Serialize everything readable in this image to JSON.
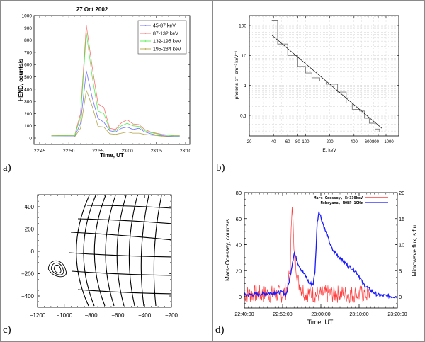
{
  "panels": {
    "a": {
      "label": "a)"
    },
    "b": {
      "label": "b)"
    },
    "c": {
      "label": "c)"
    },
    "d": {
      "label": "d)"
    }
  },
  "chart_data": [
    {
      "id": "a",
      "type": "line",
      "title": "27 Oct 2002",
      "xlabel": "Time, UT",
      "ylabel": "HEND, counts/s",
      "xlim": [
        22.7333,
        23.1833
      ],
      "ylim": [
        -40,
        1000
      ],
      "xticks": [
        "22:45",
        "22:50",
        "22:55",
        "23:00",
        "23:05",
        "23:10"
      ],
      "yticks": [
        0,
        100,
        200,
        300,
        400,
        500,
        600,
        700,
        800,
        900,
        1000
      ],
      "legend": "top-right",
      "x": [
        "22:47",
        "22:51",
        "22:52",
        "22:53",
        "22:54",
        "22:55",
        "22:56",
        "22:57",
        "22:58",
        "22:59",
        "23:00",
        "23:01",
        "23:02",
        "23:03",
        "23:04",
        "23:05",
        "23:06",
        "23:07",
        "23:08",
        "23:09"
      ],
      "series": [
        {
          "name": "45-87 keV",
          "color": "#6f6fff",
          "values": [
            10,
            12,
            120,
            550,
            330,
            160,
            130,
            60,
            50,
            80,
            90,
            70,
            80,
            50,
            35,
            25,
            20,
            15,
            15,
            15
          ]
        },
        {
          "name": "87-132 keV",
          "color": "#ff7070",
          "values": [
            20,
            22,
            200,
            920,
            580,
            280,
            250,
            80,
            70,
            125,
            150,
            115,
            110,
            70,
            50,
            40,
            30,
            25,
            20,
            20
          ]
        },
        {
          "name": "132-195 keV",
          "color": "#55ee55",
          "values": [
            18,
            20,
            170,
            860,
            500,
            220,
            200,
            70,
            60,
            100,
            120,
            100,
            95,
            60,
            45,
            35,
            28,
            22,
            18,
            18
          ]
        },
        {
          "name": "195-284 keV",
          "color": "#b3a64a",
          "values": [
            8,
            10,
            80,
            390,
            260,
            95,
            90,
            35,
            30,
            40,
            50,
            40,
            40,
            30,
            25,
            20,
            15,
            12,
            10,
            10
          ]
        }
      ]
    },
    {
      "id": "b",
      "type": "line",
      "xlabel": "E, keV",
      "ylabel": "photons s⁻¹ cm⁻² keV⁻¹",
      "xscale": "log",
      "yscale": "log",
      "xlim": [
        20,
        2000
      ],
      "ylim": [
        0.02,
        200
      ],
      "xticks": [
        "20",
        "40",
        "60",
        "80",
        "100",
        "200",
        "400",
        "600",
        "800",
        "1000"
      ],
      "yticks": [
        "0,1",
        "1",
        "10",
        "100"
      ],
      "grid": true,
      "series": [
        {
          "name": "spectrum-histogram",
          "color": "#7a7a7a",
          "edges": [
            38,
            45,
            60,
            80,
            100,
            120,
            150,
            180,
            250,
            320,
            380,
            470,
            540,
            620,
            730,
            830,
            900
          ],
          "values": [
            150,
            24,
            10,
            4.3,
            2.6,
            1.8,
            1.4,
            1.1,
            0.6,
            0.26,
            0.16,
            0.14,
            0.08,
            0.055,
            0.035,
            0.028
          ]
        },
        {
          "name": "power-law-fit",
          "color": "#000000",
          "x": [
            38,
            900
          ],
          "y": [
            48,
            0.036
          ]
        }
      ]
    },
    {
      "id": "c",
      "type": "contour",
      "xlim": [
        -1200,
        -200
      ],
      "ylim": [
        -500,
        500
      ],
      "xticks": [
        "−1200",
        "−1000",
        "−800",
        "−600",
        "−400",
        "−200"
      ],
      "yticks": [
        "−400",
        "−200",
        "0",
        "200",
        "400"
      ],
      "contour_center": [
        -1050,
        -160
      ],
      "contour_levels": 3
    },
    {
      "id": "d",
      "type": "line",
      "xlabel": "Time. UT",
      "ylabel": "Mars−Odessey, counts/s",
      "ylabel_right": "Microwave flux, s.f.u.",
      "xticks": [
        "22:40:00",
        "22:50:00",
        "23:00:00",
        "23:10:00",
        "23:20:00"
      ],
      "xlim_minutes": [
        0,
        40
      ],
      "ylim": [
        -10,
        80
      ],
      "ylim_right": [
        -2.5,
        20
      ],
      "yticks": [
        0,
        20,
        40,
        60,
        80
      ],
      "yticks_right": [
        0,
        5,
        10,
        15,
        20
      ],
      "legend": "top-right",
      "series": [
        {
          "name": "Mars−Odessey, E>330keV",
          "color": "#ff1a1a",
          "axis": "left",
          "x": [
            0,
            5,
            10,
            11,
            12,
            12.5,
            13,
            13.5,
            14,
            15,
            16,
            18,
            20,
            25,
            30,
            35
          ],
          "values": [
            2,
            2,
            2,
            5,
            20,
            78,
            30,
            25,
            12,
            6,
            3,
            2,
            2,
            2,
            2,
            2
          ]
        },
        {
          "name": "Nobeyama, NORP 1GHz",
          "color": "#1a1aff",
          "axis": "right",
          "x": [
            0,
            4,
            8,
            10,
            11,
            12,
            13,
            14,
            15,
            16,
            17,
            18,
            18.5,
            19,
            19.5,
            21,
            23,
            25,
            27,
            29,
            30,
            31,
            33,
            35,
            38,
            40
          ],
          "values": [
            0.3,
            0.5,
            0.8,
            0.8,
            0.5,
            4,
            8.5,
            6.5,
            5,
            4,
            2.5,
            2.5,
            5,
            14,
            16.5,
            13,
            9,
            7.5,
            6,
            5,
            4,
            2.5,
            1.2,
            0.3,
            0.1,
            0
          ]
        }
      ]
    }
  ]
}
